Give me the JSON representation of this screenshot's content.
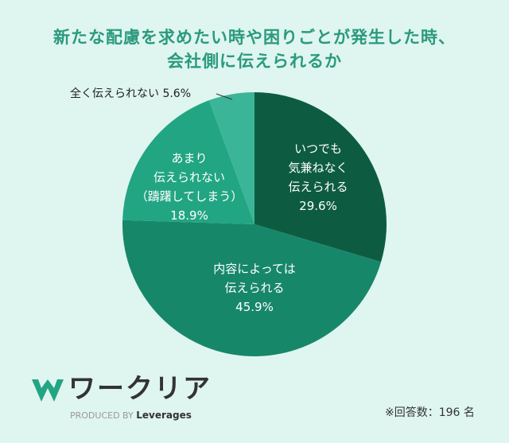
{
  "chart_data": {
    "type": "pie",
    "title_lines": [
      "新たな配慮を求めたい時や困りごとが発生した時、",
      "会社側に伝えられるか"
    ],
    "slices": [
      {
        "label_lines": [
          "いつでも",
          "気兼ねなく",
          "伝えられる"
        ],
        "value": 29.6,
        "value_label": "29.6%",
        "color": "#0d5c41"
      },
      {
        "label_lines": [
          "内容によっては",
          "伝えられる"
        ],
        "value": 45.9,
        "value_label": "45.9%",
        "color": "#17876a"
      },
      {
        "label_lines": [
          "あまり",
          "伝えられない",
          "（躊躇してしまう）"
        ],
        "value": 18.9,
        "value_label": "18.9%",
        "color": "#22a583"
      },
      {
        "label_lines": [
          "全く伝えられない"
        ],
        "value": 5.6,
        "value_label": "5.6%",
        "color": "#3bb597"
      }
    ],
    "start": "top",
    "direction": "clockwise"
  },
  "footer": {
    "logo_text": "ワークリア",
    "produced_by": "PRODUCED BY",
    "brand": "Leverages",
    "note": "※回答数：196 名"
  },
  "colors": {
    "background": "#dff5f0",
    "title": "#2a9a7d"
  }
}
